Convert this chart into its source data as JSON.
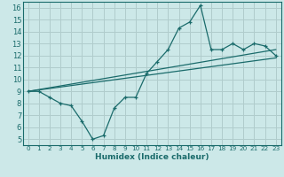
{
  "bg_color": "#cce8e8",
  "grid_color": "#b0cccc",
  "line_color": "#1a6b6b",
  "xlabel": "Humidex (Indice chaleur)",
  "xlim": [
    -0.5,
    23.5
  ],
  "ylim": [
    4.5,
    16.5
  ],
  "xticks": [
    0,
    1,
    2,
    3,
    4,
    5,
    6,
    7,
    8,
    9,
    10,
    11,
    12,
    13,
    14,
    15,
    16,
    17,
    18,
    19,
    20,
    21,
    22,
    23
  ],
  "yticks": [
    5,
    6,
    7,
    8,
    9,
    10,
    11,
    12,
    13,
    14,
    15,
    16
  ],
  "line1_x": [
    0,
    1,
    2,
    3,
    4,
    5,
    6,
    7,
    8,
    9,
    10,
    11,
    12,
    13,
    14,
    15,
    16,
    17,
    18,
    19,
    20,
    21,
    22,
    23
  ],
  "line1_y": [
    9,
    9,
    8.5,
    8,
    7.8,
    6.5,
    5.0,
    5.3,
    7.6,
    8.5,
    8.5,
    10.5,
    11.5,
    12.5,
    14.3,
    14.8,
    16.2,
    12.5,
    12.5,
    13.0,
    12.5,
    13.0,
    12.8,
    12.0
  ],
  "line2_x": [
    0,
    23
  ],
  "line2_y": [
    9.0,
    12.5
  ],
  "line3_x": [
    0,
    23
  ],
  "line3_y": [
    9.0,
    11.8
  ]
}
